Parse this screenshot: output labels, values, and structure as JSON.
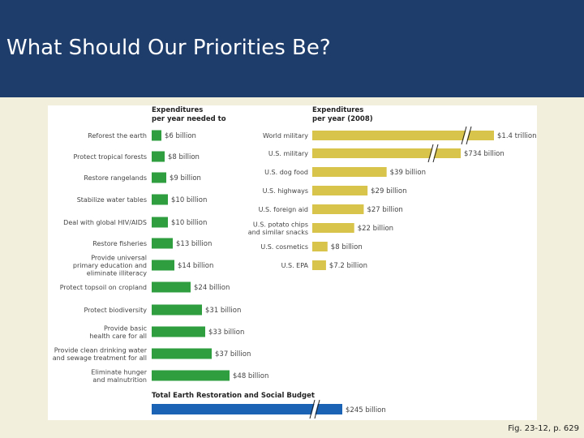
{
  "slide": {
    "title": "What Should Our Priorities Be?",
    "caption": "Fig. 23-12, p. 629"
  },
  "chart_data": [
    {
      "type": "bar",
      "orientation": "horizontal",
      "title": "Expenditures per year needed to",
      "title_lines": [
        "Expenditures",
        "per year needed to"
      ],
      "unit": "billion",
      "color": "#2e9e3f",
      "categories": [
        [
          "Reforest the earth"
        ],
        [
          "Protect tropical forests"
        ],
        [
          "Restore rangelands"
        ],
        [
          "Stabilize water tables"
        ],
        [
          "Deal with global HIV/AIDS"
        ],
        [
          "Restore fisheries"
        ],
        [
          "Provide universal",
          "primary education and",
          "eliminate illiteracy"
        ],
        [
          "Protect topsoil on cropland"
        ],
        [
          "Protect biodiversity"
        ],
        [
          "Provide basic",
          "health care for all"
        ],
        [
          "Provide clean drinking water",
          "and sewage treatment for all"
        ],
        [
          "Eliminate hunger",
          "and malnutrition"
        ]
      ],
      "values": [
        6,
        8,
        9,
        10,
        10,
        13,
        14,
        24,
        31,
        33,
        37,
        48
      ],
      "data_labels": [
        "$6 billion",
        "$8 billion",
        "$9 billion",
        "$10 billion",
        "$10 billion",
        "$13 billion",
        "$14 billion",
        "$24 billion",
        "$31 billion",
        "$33 billion",
        "$37 billion",
        "$48 billion"
      ]
    },
    {
      "type": "bar",
      "orientation": "horizontal",
      "title": "Total Earth Restoration and Social Budget",
      "color": "#1a63b5",
      "categories": [
        ""
      ],
      "values": [
        245
      ],
      "axis_break": true,
      "data_labels": [
        "$245 billion"
      ]
    },
    {
      "type": "bar",
      "orientation": "horizontal",
      "title": "Expenditures per year (2008)",
      "title_lines": [
        "Expenditures",
        "per year (2008)"
      ],
      "unit": "billion",
      "color": "#d8c44a",
      "categories": [
        [
          "World military"
        ],
        [
          "U.S. military"
        ],
        [
          "U.S. dog food"
        ],
        [
          "U.S. highways"
        ],
        [
          "U.S. foreign aid"
        ],
        [
          "U.S. potato chips",
          "and similar snacks"
        ],
        [
          "U.S. cosmetics"
        ],
        [
          "U.S. EPA"
        ]
      ],
      "values": [
        1400,
        734,
        39,
        29,
        27,
        22,
        8,
        7.2
      ],
      "axis_break": [
        true,
        true,
        false,
        false,
        false,
        false,
        false,
        false
      ],
      "data_labels": [
        "$1.4 trillion",
        "$734 billion",
        "$39 billion",
        "$29 billion",
        "$27 billion",
        "$22 billion",
        "$8 billion",
        "$7.2 billion"
      ]
    }
  ]
}
